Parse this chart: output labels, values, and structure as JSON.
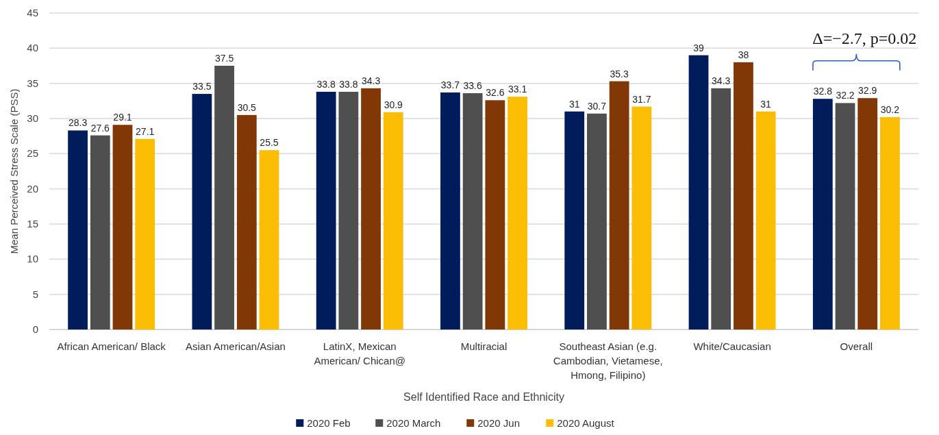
{
  "chart_data": {
    "type": "bar",
    "xlabel": "Self Identified Race and Ethnicity",
    "ylabel": "Mean Perceived Stress Scale (PSS)",
    "categories": [
      "African American/ Black",
      "Asian American/Asian",
      "LatinX, Mexican American/ Chican@",
      "Multiracial",
      "Southeast Asian (e.g. Cambodian, Vietamese, Hmong, Filipino)",
      "White/Caucasian",
      "Overall"
    ],
    "series": [
      {
        "name": "2020 Feb",
        "color": "#001c5a",
        "values": [
          28.3,
          33.5,
          33.8,
          33.7,
          31,
          39,
          32.8
        ]
      },
      {
        "name": "2020 March",
        "color": "#4f4f4f",
        "values": [
          27.6,
          37.5,
          33.8,
          33.6,
          30.7,
          34.3,
          32.2
        ]
      },
      {
        "name": "2020 Jun",
        "color": "#813706",
        "values": [
          29.1,
          30.5,
          34.3,
          32.6,
          35.3,
          38,
          32.9
        ]
      },
      {
        "name": "2020 August",
        "color": "#fbbe05",
        "values": [
          27.1,
          25.5,
          30.9,
          33.1,
          31.7,
          31,
          30.2
        ]
      }
    ],
    "ylim": [
      0,
      45
    ],
    "yticks": [
      0,
      5,
      10,
      15,
      20,
      25,
      30,
      35,
      40,
      45
    ],
    "grid": "y",
    "legend": "bottom",
    "data_labels": true,
    "annotations": [
      "Δ=−2.7, p=0.02"
    ]
  }
}
